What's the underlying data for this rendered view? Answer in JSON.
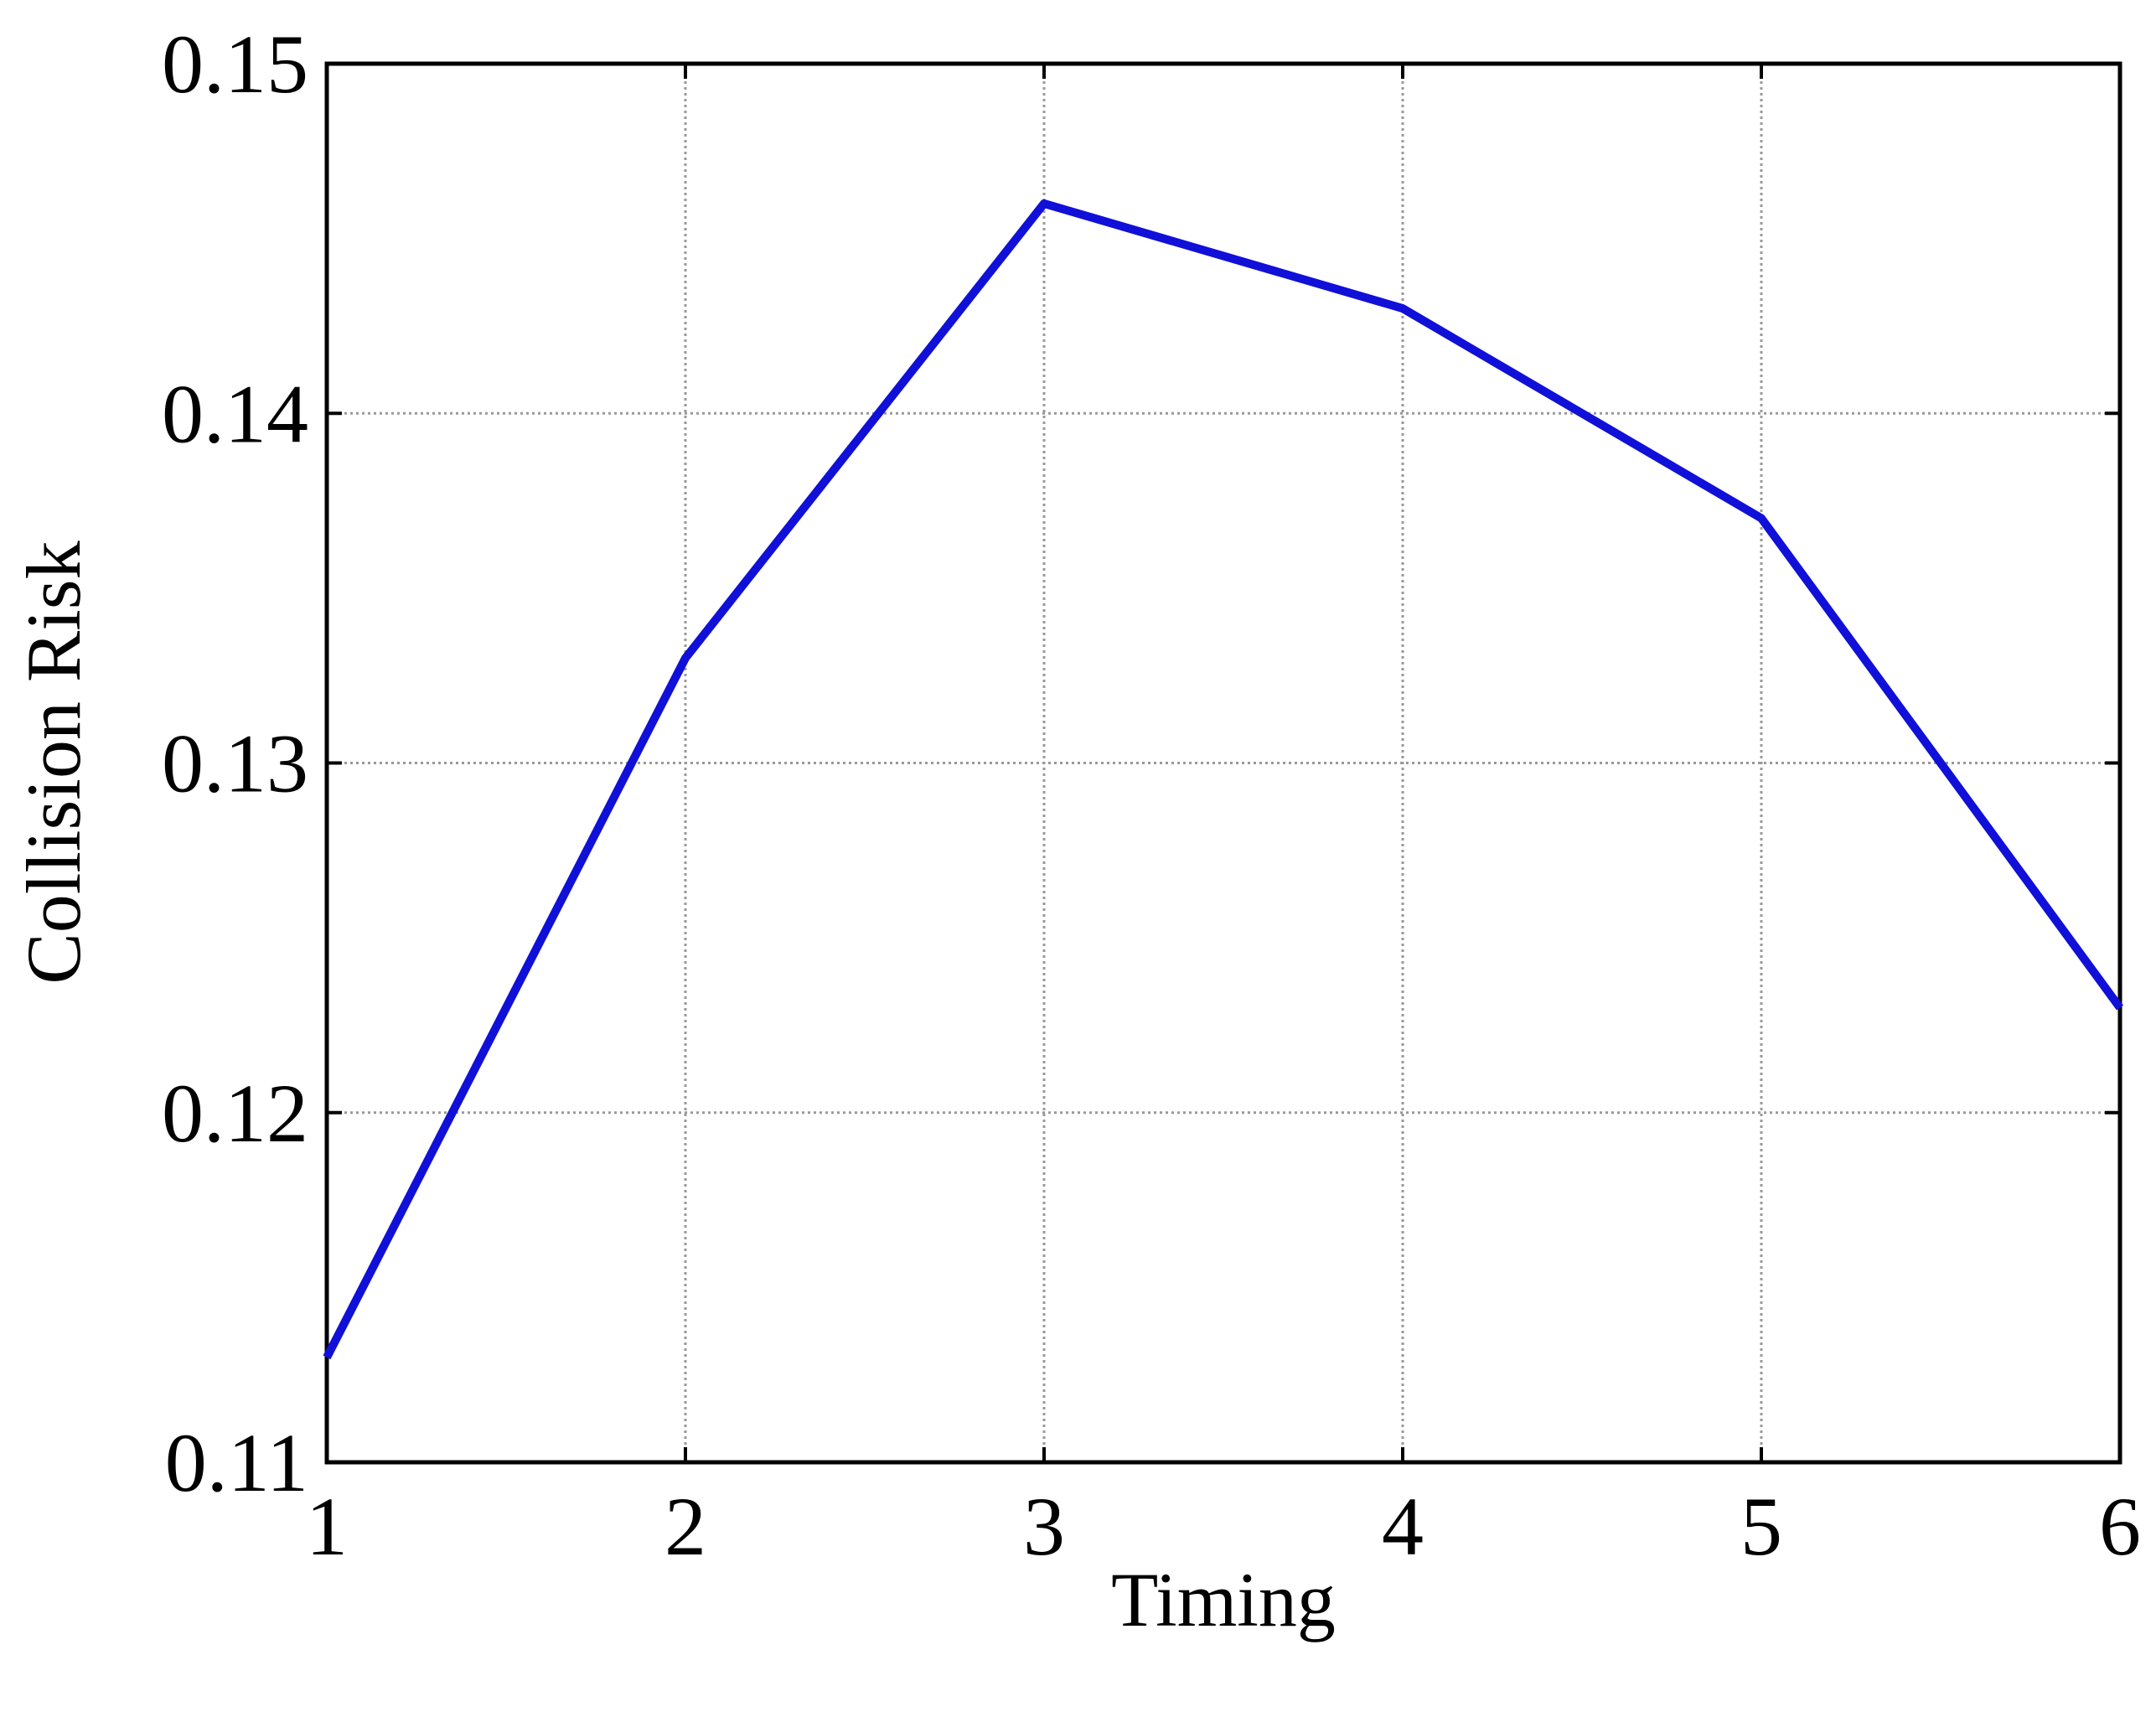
{
  "chart_data": {
    "type": "line",
    "x_label": "Timing",
    "y_label": "Collision Risk",
    "x": [
      1,
      2,
      3,
      4,
      5,
      6
    ],
    "series": [
      {
        "name": "Collision Risk",
        "color": "#1010d8",
        "values": [
          0.113,
          0.133,
          0.146,
          0.143,
          0.137,
          0.123
        ]
      }
    ],
    "xlim": [
      1,
      6
    ],
    "ylim": [
      0.11,
      0.15
    ],
    "xticks": [
      1,
      2,
      3,
      4,
      5,
      6
    ],
    "yticks": [
      0.11,
      0.12,
      0.13,
      0.14,
      0.15
    ],
    "grid": true
  }
}
